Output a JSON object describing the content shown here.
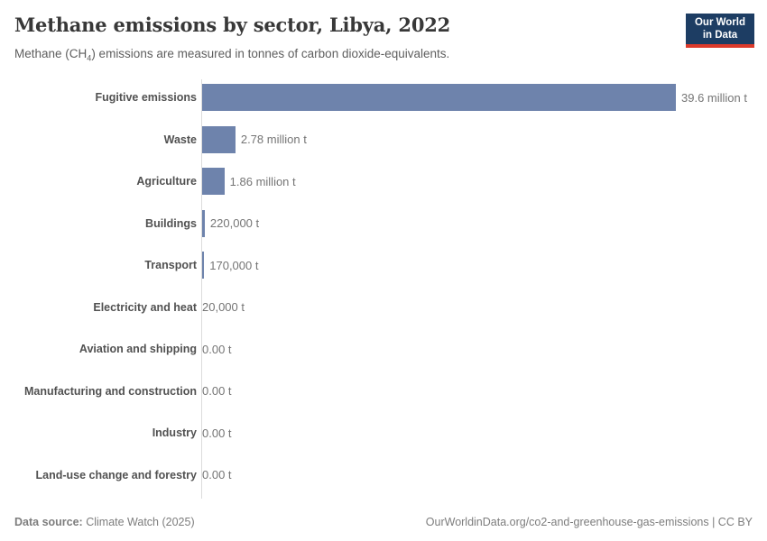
{
  "header": {
    "title": "Methane emissions by sector, Libya, 2022",
    "subtitle_prefix": "Methane (CH",
    "subtitle_sub": "4",
    "subtitle_suffix": ") emissions are measured in tonnes of carbon dioxide-equivalents.",
    "logo": {
      "line1": "Our World",
      "line2": "in Data",
      "bg_color": "#1d3d63",
      "accent_color": "#dc3a2b"
    }
  },
  "chart_data": {
    "type": "bar",
    "orientation": "horizontal",
    "title": "Methane emissions by sector, Libya, 2022",
    "unit": "tonnes of carbon dioxide-equivalents",
    "categories": [
      "Fugitive emissions",
      "Waste",
      "Agriculture",
      "Buildings",
      "Transport",
      "Electricity and heat",
      "Aviation and shipping",
      "Manufacturing and construction",
      "Industry",
      "Land-use change and forestry"
    ],
    "values": [
      39600000,
      2780000,
      1860000,
      220000,
      170000,
      20000,
      0,
      0,
      0,
      0
    ],
    "value_labels": [
      "39.6 million t",
      "2.78 million t",
      "1.86 million t",
      "220,000 t",
      "170,000 t",
      "20,000 t",
      "0.00 t",
      "0.00 t",
      "0.00 t",
      "0.00 t"
    ],
    "xlim": [
      0,
      39600000
    ],
    "bar_color": "#6e83ac",
    "axis_color": "#dcdcdc",
    "grid": false,
    "legend": "none"
  },
  "footer": {
    "datasource_label": "Data source:",
    "datasource_value": " Climate Watch (2025)",
    "link": "OurWorldinData.org/co2-and-greenhouse-gas-emissions | CC BY"
  }
}
